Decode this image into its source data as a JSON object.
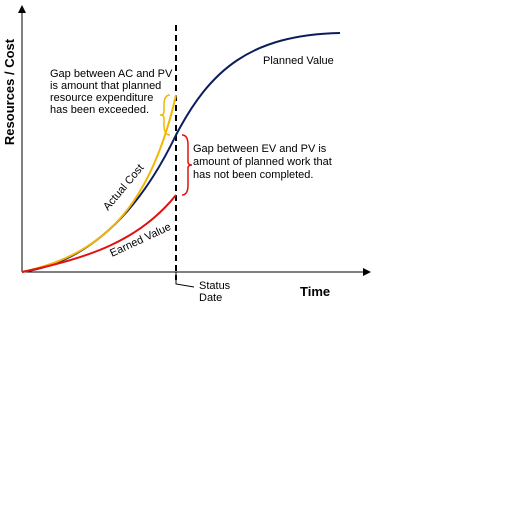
{
  "axes": {
    "y_label": "Resources / Cost",
    "x_label": "Time"
  },
  "curves": [
    {
      "label": "Planned Value"
    },
    {
      "label": "Actual Cost"
    },
    {
      "label": "Earned Value"
    }
  ],
  "status_date": {
    "lines": [
      "Status",
      "Date"
    ]
  },
  "annotations": [
    {
      "lines": [
        "Gap between AC and PV",
        "is amount that planned",
        "resource expenditure",
        "has been exceeded."
      ]
    },
    {
      "lines": [
        "Gap between EV and PV is",
        "amount of planned work that",
        "has not been completed."
      ]
    }
  ]
}
